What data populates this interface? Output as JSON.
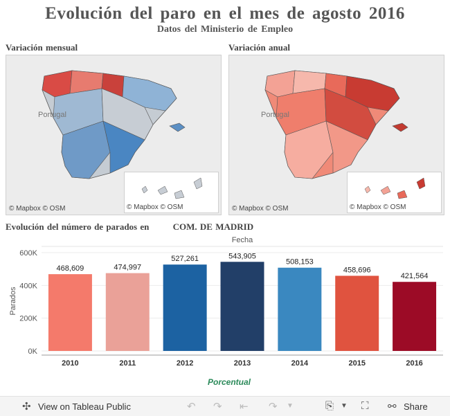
{
  "header": {
    "title": "Evolución del paro en el mes de agosto 2016",
    "subtitle": "Datos del Ministerio de Empleo"
  },
  "maps": {
    "monthly_title": "Variación mensual",
    "annual_title": "Variación anual",
    "portugal_label": "Portugal",
    "credit_mapbox": "© Mapbox",
    "credit_osm": "© OSM"
  },
  "bar_section": {
    "title_prefix": "Evolución del número de parados en",
    "region": "COM. DE MADRID"
  },
  "chart_data": {
    "type": "bar",
    "title": "Fecha",
    "ylabel": "Parados",
    "categories": [
      "2010",
      "2011",
      "2012",
      "2013",
      "2014",
      "2015",
      "2016"
    ],
    "values": [
      468609,
      474997,
      527261,
      543905,
      508153,
      458696,
      421564
    ],
    "value_labels": [
      "468,609",
      "474,997",
      "527,261",
      "543,905",
      "508,153",
      "458,696",
      "421,564"
    ],
    "colors": [
      "#f47a6b",
      "#eaa198",
      "#1c62a2",
      "#223f68",
      "#3a88c0",
      "#e0533f",
      "#9c0b26"
    ],
    "yticks": [
      0,
      200000,
      400000,
      600000
    ],
    "ytick_labels": [
      "0K",
      "200K",
      "400K",
      "600K"
    ],
    "ylim": [
      0,
      600000
    ],
    "grid": true
  },
  "logo_text": "Porcentual",
  "footer": {
    "view_label": "View on Tableau Public",
    "share_label": "Share",
    "icons": [
      "tableau-icon",
      "undo-icon",
      "redo-icon",
      "revert-icon",
      "forward-icon",
      "download-icon",
      "fullscreen-icon",
      "share-icon"
    ]
  }
}
